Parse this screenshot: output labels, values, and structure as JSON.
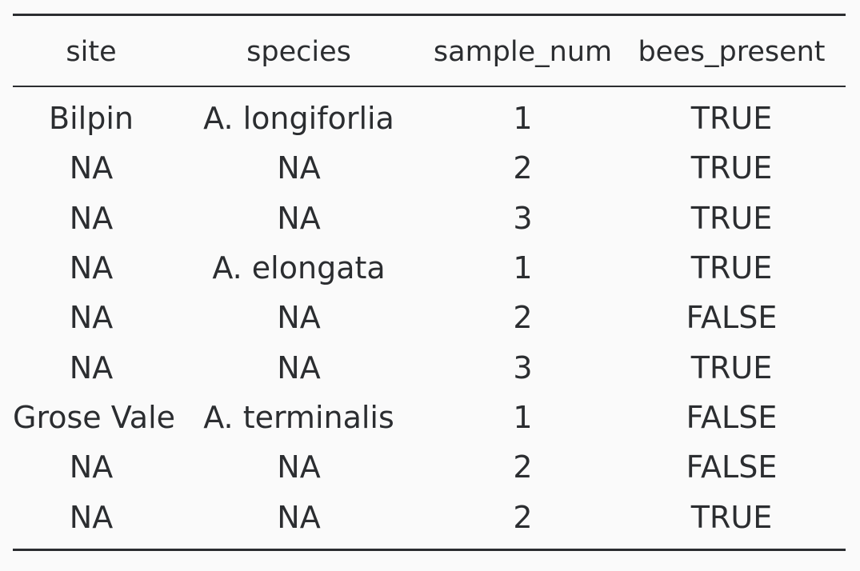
{
  "table": {
    "columns": [
      "site",
      "species",
      "sample_num",
      "bees_present"
    ],
    "rows": [
      [
        "Bilpin",
        "A. longiforlia",
        "1",
        "TRUE"
      ],
      [
        "NA",
        "NA",
        "2",
        "TRUE"
      ],
      [
        "NA",
        "NA",
        "3",
        "TRUE"
      ],
      [
        "NA",
        "A. elongata",
        "1",
        "TRUE"
      ],
      [
        "NA",
        "NA",
        "2",
        "FALSE"
      ],
      [
        "NA",
        "NA",
        "3",
        "TRUE"
      ],
      [
        "Grose Vale",
        "A. terminalis",
        "1",
        "FALSE"
      ],
      [
        "NA",
        "NA",
        "2",
        "FALSE"
      ],
      [
        "NA",
        "NA",
        "2",
        "TRUE"
      ]
    ]
  },
  "colors": {
    "background": "#fafafa",
    "text": "#2b2d30",
    "rules": "#2b2d30"
  }
}
